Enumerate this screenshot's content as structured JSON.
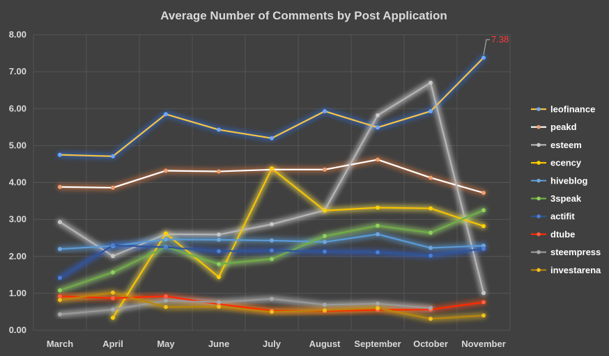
{
  "chart_data": {
    "type": "line",
    "title": "Average Number of Comments by Post Application",
    "xlabel": "",
    "ylabel": "",
    "ylim": [
      0,
      8
    ],
    "y_ticks": [
      "0.00",
      "1.00",
      "2.00",
      "3.00",
      "4.00",
      "5.00",
      "6.00",
      "7.00",
      "8.00"
    ],
    "categories": [
      "March",
      "April",
      "May",
      "June",
      "July",
      "August",
      "September",
      "October",
      "November"
    ],
    "grid": "vertical and horizontal",
    "legend_position": "right",
    "series": [
      {
        "name": "leofinance",
        "color": "#f6c344",
        "glow": "#2d6bd6",
        "marker": "#6ea6ff",
        "values": [
          4.75,
          4.71,
          5.85,
          5.43,
          5.2,
          5.93,
          5.49,
          5.93,
          7.38
        ]
      },
      {
        "name": "peakd",
        "color": "#ffffff",
        "glow": "#d9773f",
        "marker": "#f0a070",
        "values": [
          3.88,
          3.86,
          4.32,
          4.3,
          4.35,
          4.35,
          4.62,
          4.13,
          3.72
        ]
      },
      {
        "name": "esteem",
        "color": "#b5b5b5",
        "glow": "#dddddd",
        "marker": "#c8c8c8",
        "values": [
          2.93,
          2.01,
          2.6,
          2.59,
          2.87,
          3.25,
          5.82,
          6.7,
          1.01
        ]
      },
      {
        "name": "ecency",
        "color": "#f6c300",
        "glow": "#f6e04a",
        "marker": "#ffd000",
        "values": [
          null,
          0.34,
          2.62,
          1.44,
          4.38,
          3.24,
          3.32,
          3.3,
          2.82
        ]
      },
      {
        "name": "hiveblog",
        "color": "#5b9bd5",
        "glow": "#5b9bd5",
        "marker": "#6ea6e0",
        "values": [
          2.2,
          2.28,
          2.46,
          2.45,
          2.43,
          2.39,
          2.6,
          2.23,
          2.29
        ]
      },
      {
        "name": "3speak",
        "color": "#70ad47",
        "glow": "#9fe070",
        "marker": "#8fd05f",
        "values": [
          1.08,
          1.57,
          2.26,
          1.79,
          1.93,
          2.55,
          2.83,
          2.64,
          3.25
        ]
      },
      {
        "name": "actifit",
        "color": "#2f5597",
        "glow": "#2d5fd6",
        "marker": "#4a7fd8",
        "values": [
          1.42,
          2.3,
          2.25,
          2.14,
          2.16,
          2.13,
          2.11,
          2.02,
          2.21
        ]
      },
      {
        "name": "dtube",
        "color": "#ff2a00",
        "glow": "#ff4a1a",
        "marker": "#ff6040",
        "values": [
          0.92,
          0.87,
          0.92,
          0.71,
          0.53,
          0.52,
          0.55,
          0.56,
          0.76
        ]
      },
      {
        "name": "steempress",
        "color": "#999999",
        "glow": "#cfcfcf",
        "marker": "#a8a8a8",
        "values": [
          0.43,
          0.56,
          0.8,
          0.76,
          0.85,
          0.69,
          0.72,
          0.6,
          null
        ]
      },
      {
        "name": "investarena",
        "color": "#b8860b",
        "glow": "#e0b020",
        "marker": "#f0c020",
        "values": [
          0.82,
          1.02,
          0.63,
          0.64,
          0.5,
          0.54,
          0.6,
          0.31,
          0.4
        ]
      }
    ],
    "annotations": [
      {
        "text": "7.38",
        "series": "leofinance",
        "category": "November",
        "color": "#ff3b3b"
      }
    ]
  }
}
